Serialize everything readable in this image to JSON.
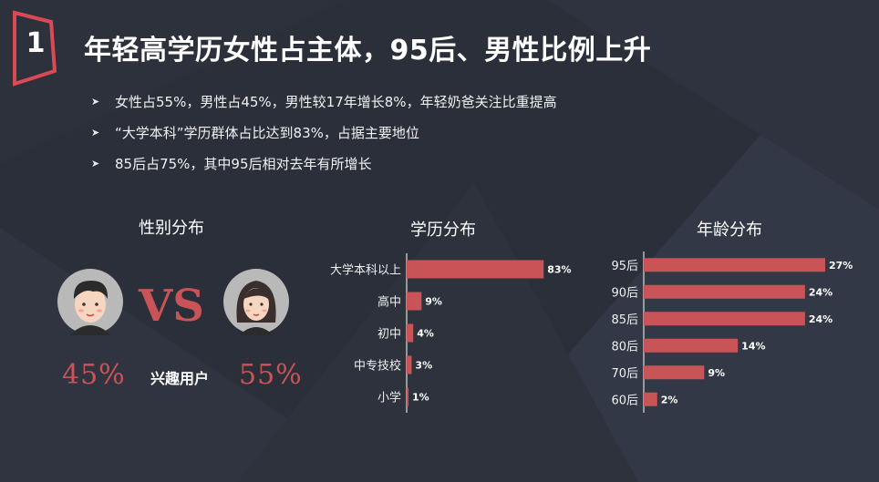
{
  "header": {
    "badge_number": "1",
    "title": "年轻高学历女性占主体，95后、男性比例上升"
  },
  "bullets": [
    "女性占55%，男性占45%，男性较17年增长8%，年轻奶爸关注比重提高",
    "“大学本科”学历群体占比达到83%，占据主要地位",
    "85后占75%，其中95后相对去年有所增长"
  ],
  "gender": {
    "title": "性别分布",
    "male_pct": "45%",
    "female_pct": "55%",
    "vs_label": "VS",
    "center_label": "兴趣用户"
  },
  "colors": {
    "bar": "#c95457",
    "accent": "#d94a55",
    "background": "#2a2f3a"
  },
  "chart_data": [
    {
      "type": "bar",
      "orientation": "horizontal",
      "title": "学历分布",
      "categories": [
        "大学本科以上",
        "高中",
        "初中",
        "中专技校",
        "小学"
      ],
      "values": [
        83,
        9,
        4,
        3,
        1
      ],
      "value_labels": [
        "83%",
        "9%",
        "4%",
        "3%",
        "1%"
      ],
      "unit": "%"
    },
    {
      "type": "bar",
      "orientation": "horizontal",
      "title": "年龄分布",
      "categories": [
        "95后",
        "90后",
        "85后",
        "80后",
        "70后",
        "60后"
      ],
      "values": [
        27,
        24,
        24,
        14,
        9,
        2
      ],
      "value_labels": [
        "27%",
        "24%",
        "24%",
        "14%",
        "9%",
        "2%"
      ],
      "unit": "%"
    }
  ]
}
